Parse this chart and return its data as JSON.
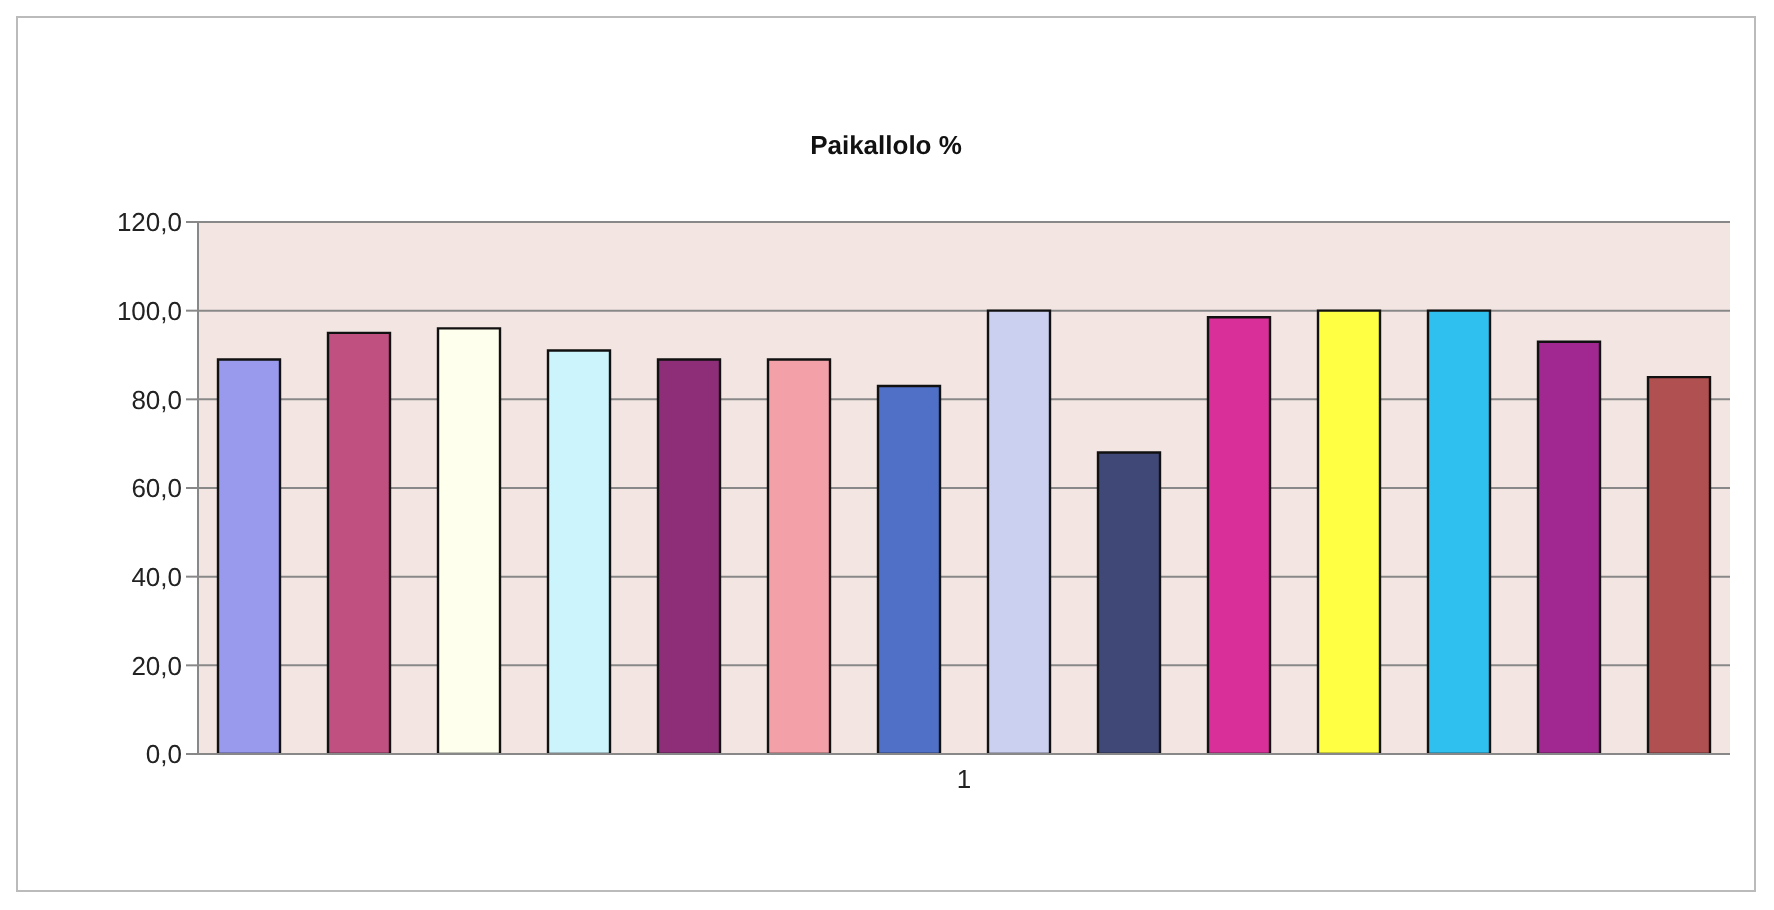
{
  "chart_data": {
    "type": "bar",
    "title": "Paikallolo %",
    "categories": [
      "1"
    ],
    "series": [
      {
        "color": "#9999ee",
        "values": [
          89
        ]
      },
      {
        "color": "#c05080",
        "values": [
          95
        ]
      },
      {
        "color": "#ffffee",
        "values": [
          96
        ]
      },
      {
        "color": "#ccf4fc",
        "values": [
          91
        ]
      },
      {
        "color": "#8e2e78",
        "values": [
          89
        ]
      },
      {
        "color": "#f4a0a8",
        "values": [
          89
        ]
      },
      {
        "color": "#5070c8",
        "values": [
          83
        ]
      },
      {
        "color": "#ccd0f0",
        "values": [
          100
        ]
      },
      {
        "color": "#404878",
        "values": [
          68
        ]
      },
      {
        "color": "#d83098",
        "values": [
          98.5
        ]
      },
      {
        "color": "#ffff44",
        "values": [
          100
        ]
      },
      {
        "color": "#30c0f0",
        "values": [
          100
        ]
      },
      {
        "color": "#a02890",
        "values": [
          93
        ]
      },
      {
        "color": "#b05050",
        "values": [
          85
        ]
      }
    ],
    "ylim": [
      0,
      120
    ],
    "yticks": [
      {
        "value": 0,
        "label": "0,0"
      },
      {
        "value": 20,
        "label": "20,0"
      },
      {
        "value": 40,
        "label": "40,0"
      },
      {
        "value": 60,
        "label": "60,0"
      },
      {
        "value": 80,
        "label": "80,0"
      },
      {
        "value": 100,
        "label": "100,0"
      },
      {
        "value": 120,
        "label": "120,0"
      }
    ],
    "grid": "y"
  }
}
